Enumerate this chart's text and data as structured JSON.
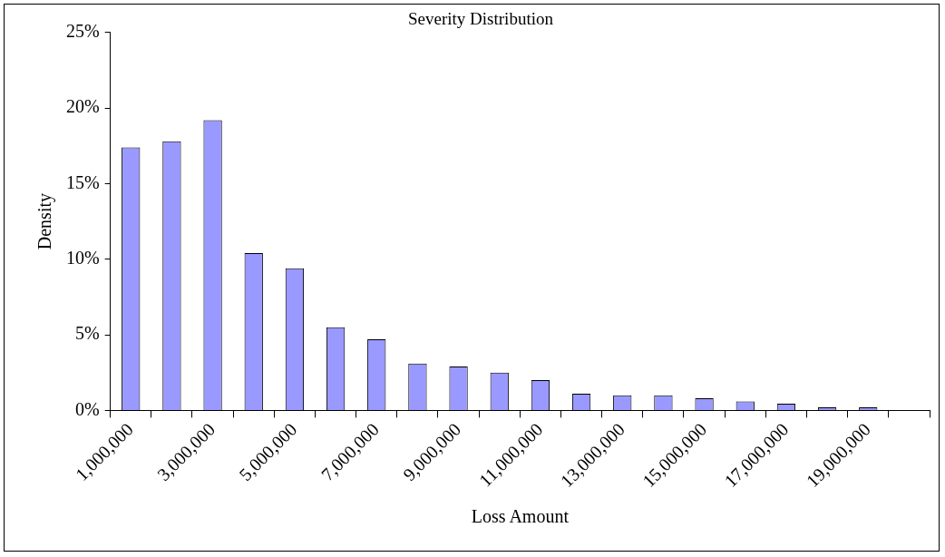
{
  "chart_data": {
    "type": "bar",
    "title": "Severity Distribution",
    "xlabel": "Loss Amount",
    "ylabel": "Density",
    "categories": [
      "1,000,000",
      null,
      "3,000,000",
      null,
      "5,000,000",
      null,
      "7,000,000",
      null,
      "9,000,000",
      null,
      "11,000,000",
      null,
      "13,000,000",
      null,
      "15,000,000",
      null,
      "17,000,000",
      null,
      "19,000,000",
      null
    ],
    "values": [
      17.4,
      17.8,
      19.2,
      10.4,
      9.4,
      5.5,
      4.7,
      3.1,
      2.9,
      2.5,
      2.0,
      1.1,
      1.0,
      1.0,
      0.8,
      0.6,
      0.45,
      0.2,
      0.2,
      0
    ],
    "color": "#9999ff",
    "ylim": [
      0,
      25
    ],
    "yticks": [
      {
        "value": 0,
        "label": "0%"
      },
      {
        "value": 5,
        "label": "5%"
      },
      {
        "value": 10,
        "label": "10%"
      },
      {
        "value": 15,
        "label": "15%"
      },
      {
        "value": 20,
        "label": "20%"
      },
      {
        "value": 25,
        "label": "25%"
      }
    ],
    "grid": false,
    "legend": false
  }
}
